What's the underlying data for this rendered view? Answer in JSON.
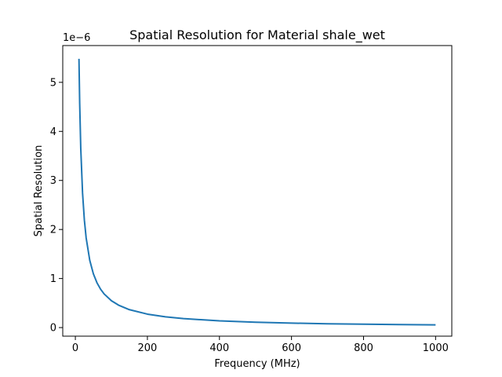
{
  "chart_data": {
    "type": "line",
    "title": "Spatial Resolution for Material shale_wet",
    "xlabel": "Frequency (MHz)",
    "ylabel": "Spatial Resolution",
    "y_offset_label": "1e−6",
    "xlim": [
      -35,
      1045
    ],
    "ylim": [
      -1.75e-07,
      5.75e-06
    ],
    "x_ticks": [
      0,
      200,
      400,
      600,
      800,
      1000
    ],
    "x_tick_labels": [
      "0",
      "200",
      "400",
      "600",
      "800",
      "1000"
    ],
    "y_ticks": [
      0,
      1e-06,
      2e-06,
      3e-06,
      4e-06,
      5e-06
    ],
    "y_tick_labels": [
      "0",
      "1",
      "2",
      "3",
      "4",
      "5"
    ],
    "grid": false,
    "legend": "none",
    "series": [
      {
        "color": "#1f77b4",
        "x": [
          10,
          12,
          15,
          20,
          25,
          30,
          40,
          50,
          60,
          70,
          80,
          100,
          120,
          150,
          200,
          250,
          300,
          400,
          500,
          600,
          700,
          800,
          900,
          1000
        ],
        "y": [
          5.48e-06,
          4.57e-06,
          3.653e-06,
          2.74e-06,
          2.192e-06,
          1.827e-06,
          1.37e-06,
          1.096e-06,
          9.13e-07,
          7.83e-07,
          6.85e-07,
          5.48e-07,
          4.57e-07,
          3.65e-07,
          2.74e-07,
          2.19e-07,
          1.83e-07,
          1.37e-07,
          1.1e-07,
          9.1e-08,
          7.8e-08,
          6.9e-08,
          6.1e-08,
          5.5e-08
        ]
      }
    ]
  }
}
